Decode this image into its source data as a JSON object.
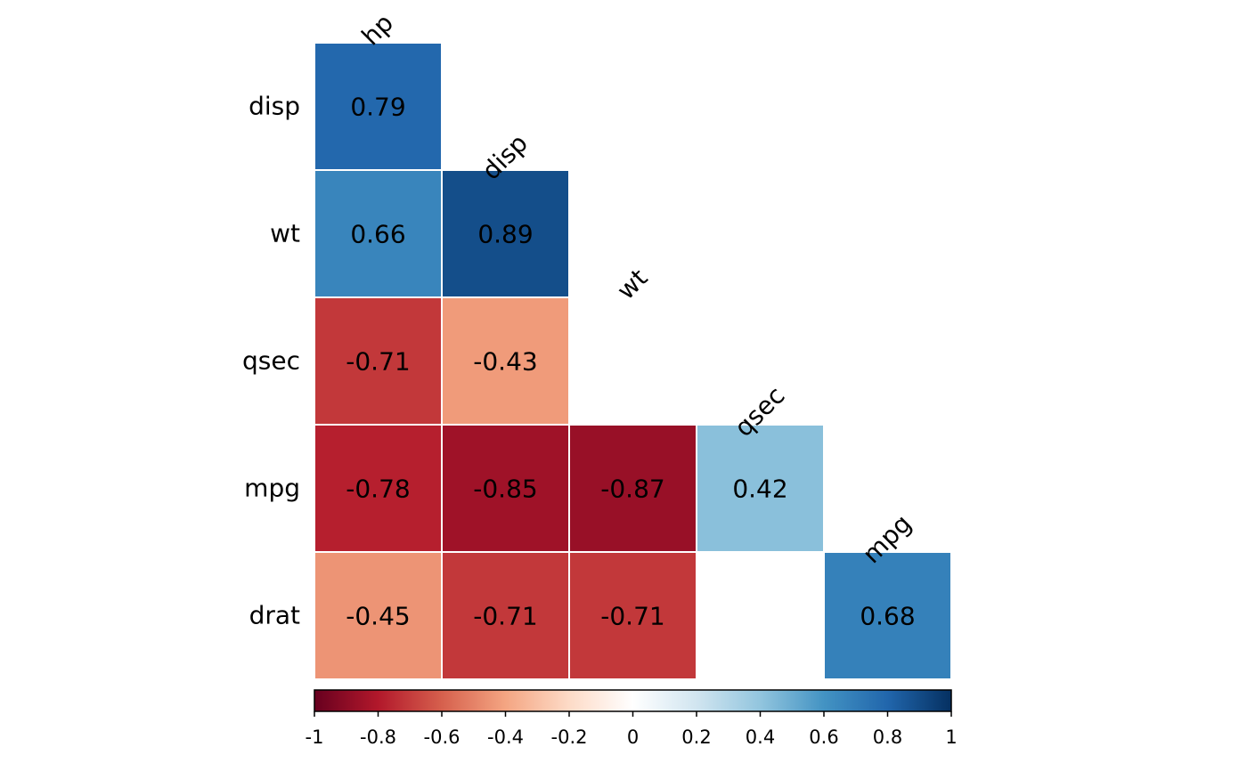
{
  "chart_data": {
    "type": "heatmap",
    "title": "",
    "layout": "lower-triangle-without-diagonal",
    "row_labels": [
      "disp",
      "wt",
      "qsec",
      "mpg",
      "drat"
    ],
    "col_labels": [
      "hp",
      "disp",
      "wt",
      "qsec",
      "mpg"
    ],
    "cells": [
      {
        "row": "disp",
        "col": "hp",
        "value": 0.79,
        "label": "0.79"
      },
      {
        "row": "wt",
        "col": "hp",
        "value": 0.66,
        "label": "0.66"
      },
      {
        "row": "wt",
        "col": "disp",
        "value": 0.89,
        "label": "0.89"
      },
      {
        "row": "qsec",
        "col": "hp",
        "value": -0.71,
        "label": "-0.71"
      },
      {
        "row": "qsec",
        "col": "disp",
        "value": -0.43,
        "label": "-0.43"
      },
      {
        "row": "mpg",
        "col": "hp",
        "value": -0.78,
        "label": "-0.78"
      },
      {
        "row": "mpg",
        "col": "disp",
        "value": -0.85,
        "label": "-0.85"
      },
      {
        "row": "mpg",
        "col": "wt",
        "value": -0.87,
        "label": "-0.87"
      },
      {
        "row": "mpg",
        "col": "qsec",
        "value": 0.42,
        "label": "0.42"
      },
      {
        "row": "drat",
        "col": "hp",
        "value": -0.45,
        "label": "-0.45"
      },
      {
        "row": "drat",
        "col": "disp",
        "value": -0.71,
        "label": "-0.71"
      },
      {
        "row": "drat",
        "col": "wt",
        "value": -0.71,
        "label": "-0.71"
      },
      {
        "row": "drat",
        "col": "qsec",
        "value": null,
        "label": ""
      },
      {
        "row": "drat",
        "col": "mpg",
        "value": 0.68,
        "label": "0.68"
      }
    ],
    "colorbar": {
      "range": [
        -1,
        1
      ],
      "placement": "bottom",
      "ticks": [
        -1,
        -0.8,
        -0.6,
        -0.4,
        -0.2,
        0,
        0.2,
        0.4,
        0.6,
        0.8,
        1
      ],
      "tick_labels": [
        "-1",
        "-0.8",
        "-0.6",
        "-0.4",
        "-0.2",
        "0",
        "0.2",
        "0.4",
        "0.6",
        "0.8",
        "1"
      ]
    },
    "colors": {
      "stops": [
        "#67001f",
        "#b2182b",
        "#d6604d",
        "#f4a582",
        "#fddbc7",
        "#ffffff",
        "#d1e5f0",
        "#92c5de",
        "#4393c3",
        "#2166ac",
        "#053061"
      ],
      "grid": "#ffffff",
      "text": "#000000"
    }
  }
}
